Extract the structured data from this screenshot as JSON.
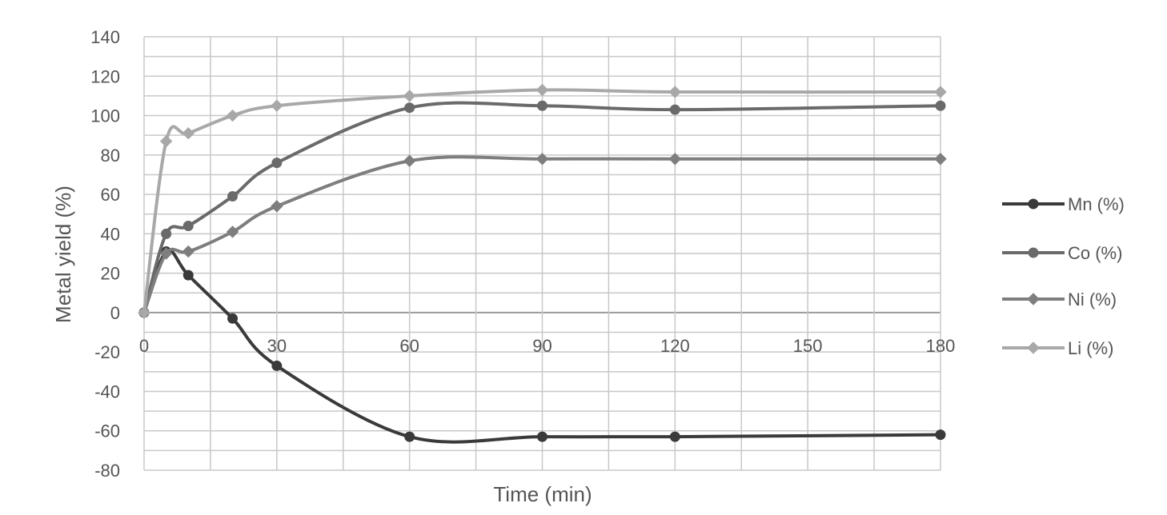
{
  "chart_data": {
    "type": "line",
    "title": "",
    "xlabel": "Time (min)",
    "ylabel": "Metal yield (%)",
    "xlim": [
      0,
      180
    ],
    "ylim": [
      -80,
      140
    ],
    "x_ticks": [
      0,
      30,
      60,
      90,
      120,
      150,
      180
    ],
    "y_ticks": [
      -80,
      -60,
      -40,
      -20,
      0,
      20,
      40,
      60,
      80,
      100,
      120,
      140
    ],
    "grid": true,
    "legend_position": "right",
    "series": [
      {
        "name": "Mn (%)",
        "color": "#3a3a3a",
        "marker": "circle",
        "x": [
          0,
          5,
          10,
          20,
          30,
          60,
          90,
          120,
          180
        ],
        "y": [
          0,
          31,
          19,
          -3,
          -27,
          -63,
          -63,
          -63,
          -62
        ]
      },
      {
        "name": "Co (%)",
        "color": "#6a6a6a",
        "marker": "circle",
        "x": [
          0,
          5,
          10,
          20,
          30,
          60,
          90,
          120,
          180
        ],
        "y": [
          0,
          40,
          44,
          59,
          76,
          104,
          105,
          103,
          105
        ]
      },
      {
        "name": "Ni (%)",
        "color": "#7e7e7e",
        "marker": "diamond",
        "x": [
          0,
          5,
          10,
          20,
          30,
          60,
          90,
          120,
          180
        ],
        "y": [
          0,
          30,
          31,
          41,
          54,
          77,
          78,
          78,
          78
        ]
      },
      {
        "name": "Li (%)",
        "color": "#a8a8a8",
        "marker": "diamond",
        "x": [
          0,
          5,
          10,
          20,
          30,
          60,
          90,
          120,
          180
        ],
        "y": [
          0,
          87,
          91,
          100,
          105,
          110,
          113,
          112,
          112
        ]
      }
    ]
  }
}
